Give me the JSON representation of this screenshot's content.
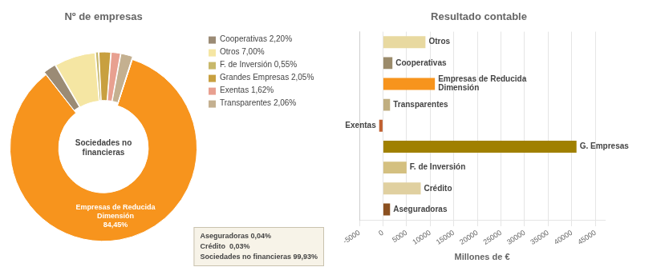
{
  "chart_data": [
    {
      "type": "doughnut",
      "title": "Nº de empresas",
      "categories": [
        "Empresas de Reducida\nDimensión\n84,45%",
        "Cooperativas 2,20%",
        "Otros 7,00%",
        "F. de Inversión 0,55%",
        "Grandes Empresas 2,05%",
        "Exentas 1,62%",
        "Transparentes 2,06%",
        null,
        null
      ],
      "values": [
        84.45,
        2.2,
        7.0,
        0.55,
        2.05,
        1.62,
        2.06,
        0.04,
        0.03
      ],
      "colors": [
        "#F7941D",
        "#9B8B75",
        "#F5E6A3",
        "#C8B86A",
        "#C8A040",
        "#E8A090",
        "#C4B090",
        "#F0A060",
        "#D4B090"
      ],
      "annotations": [
        {
          "text": "Sociedades no\nfinancieras"
        },
        {
          "text": "Aseguradoras 0,04%\nCrédito  0,03%\nSociedades no financieras 99,93%"
        }
      ]
    },
    {
      "type": "bar",
      "orientation": "horizontal",
      "title": "Resultado contable",
      "categories": [
        "Otros",
        "Cooperativas",
        "Empresas de Reducida\nDimensión",
        "Transparentes",
        "Exentas",
        "G. Empresas",
        "F. de Inversión",
        "Crédito",
        "Aseguradoras"
      ],
      "values": [
        9000,
        2000,
        11000,
        1500,
        -800,
        41000,
        5000,
        8000,
        1500
      ],
      "colors": [
        "#E8D9A0",
        "#9B8B6B",
        "#F7941D",
        "#C0AE80",
        "#C06030",
        "#A08000",
        "#D4C080",
        "#E0D0A0",
        "#8B5020"
      ],
      "xlabel": "Millones de €",
      "xlim": [
        -5000,
        47000
      ],
      "xticks": [
        -5000,
        0,
        5000,
        10000,
        15000,
        20000,
        25000,
        30000,
        35000,
        40000,
        45000
      ],
      "grid": true,
      "tick_labels": "x"
    }
  ]
}
